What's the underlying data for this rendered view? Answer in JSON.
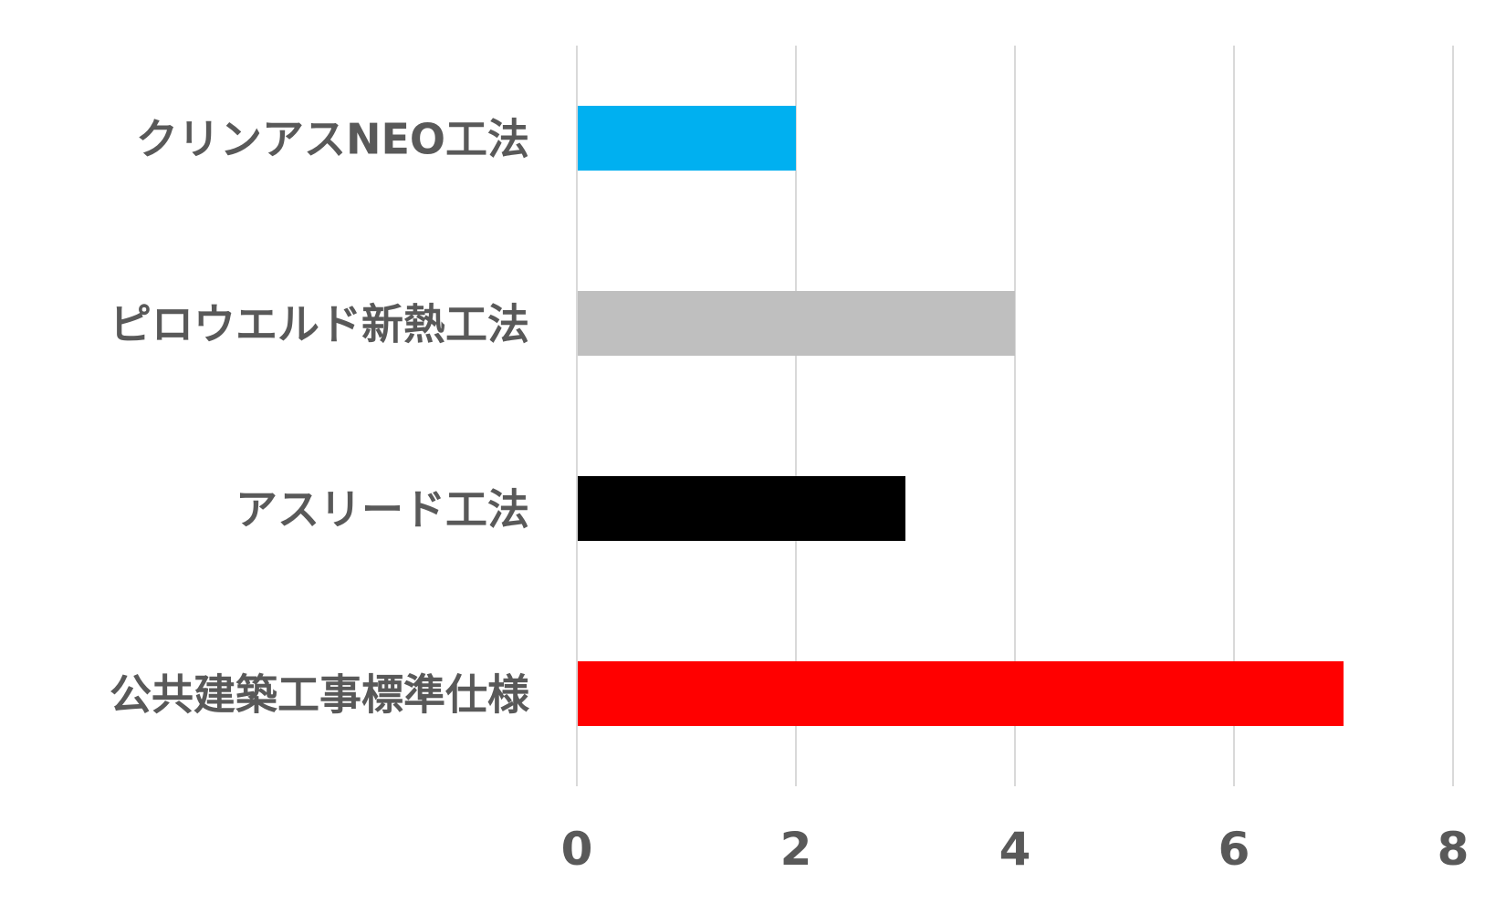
{
  "chart_data": {
    "type": "bar",
    "orientation": "horizontal",
    "categories": [
      "クリンアスNEO工法",
      "ピロウエルド新熱工法",
      "アスリード工法",
      "公共建築工事標準仕様"
    ],
    "values": [
      2,
      4,
      3,
      7
    ],
    "colors": [
      "#00B0F0",
      "#BFBFBF",
      "#000000",
      "#FF0000"
    ],
    "xlim": [
      0,
      8
    ],
    "xticks": [
      0,
      2,
      4,
      6,
      8
    ],
    "grid": true,
    "title": "",
    "xlabel": "",
    "ylabel": ""
  }
}
